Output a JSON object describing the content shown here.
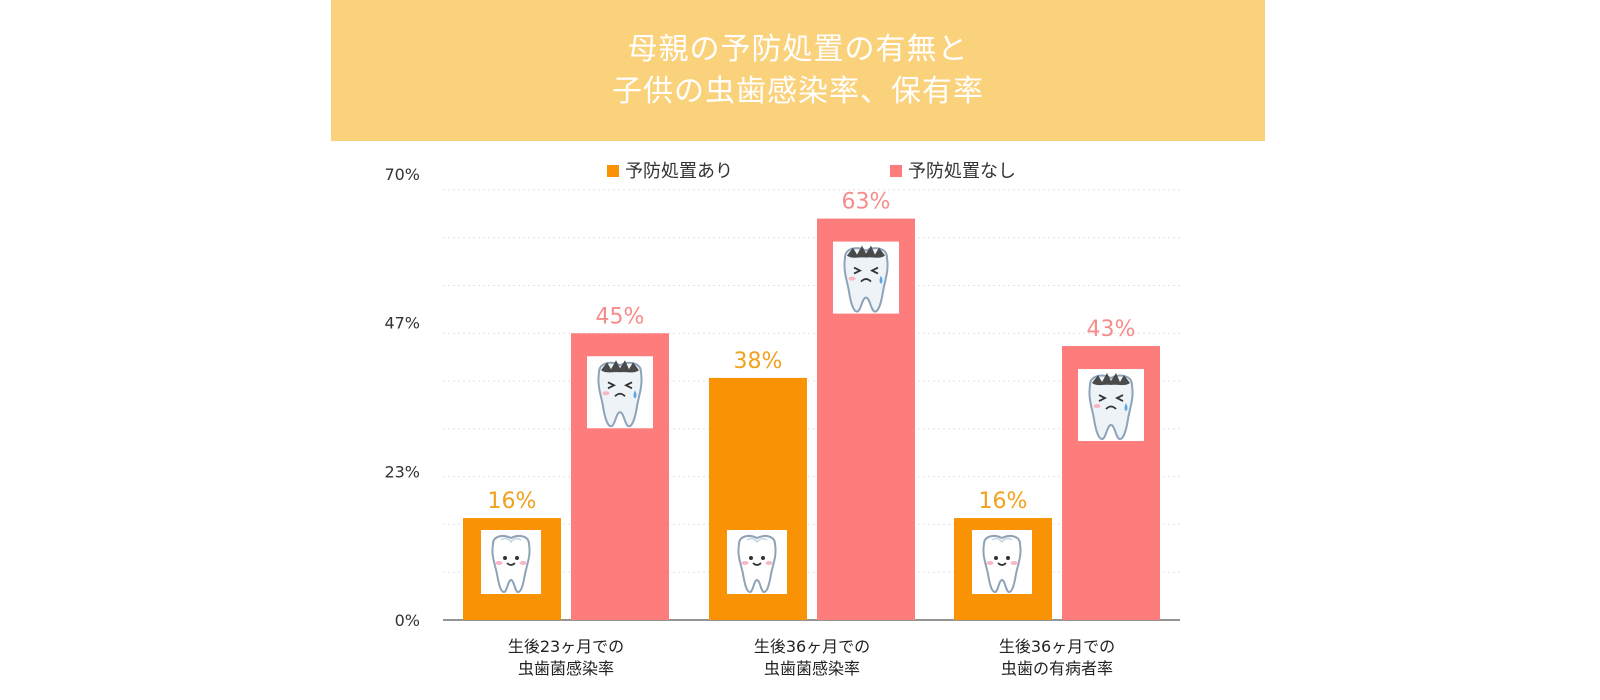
{
  "title": [
    "母親の予防処置の有無と",
    "子供の虫歯感染率、保有率"
  ],
  "colors": {
    "banner": "#fbd27c",
    "with_prevention": "#f99305",
    "without_prevention": "#fd7d7d",
    "label_with": "#f0a21c",
    "label_without": "#f78c8c"
  },
  "chart_data": {
    "type": "bar",
    "title": "母親の予防処置の有無と 子供の虫歯感染率、保有率",
    "categories": [
      [
        "生後23ヶ月での",
        "虫歯菌感染率"
      ],
      [
        "生後36ヶ月での",
        "虫歯菌感染率"
      ],
      [
        "生後36ヶ月での",
        "虫歯の有病者率"
      ]
    ],
    "series": [
      {
        "name": "予防処置あり",
        "values": [
          16,
          38,
          16
        ],
        "labels": [
          "16%",
          "38%",
          "16%"
        ],
        "icon": "happy-tooth-icon"
      },
      {
        "name": "予防処置なし",
        "values": [
          45,
          63,
          43
        ],
        "labels": [
          "45%",
          "63%",
          "43%"
        ],
        "icon": "crying-decayed-tooth-icon"
      }
    ],
    "yticks": [
      "0%",
      "23%",
      "47%",
      "70%"
    ],
    "ytick_values": [
      0,
      23.33,
      46.67,
      70
    ],
    "ylim": [
      0,
      70
    ],
    "grid": true,
    "legend_position": "top"
  }
}
